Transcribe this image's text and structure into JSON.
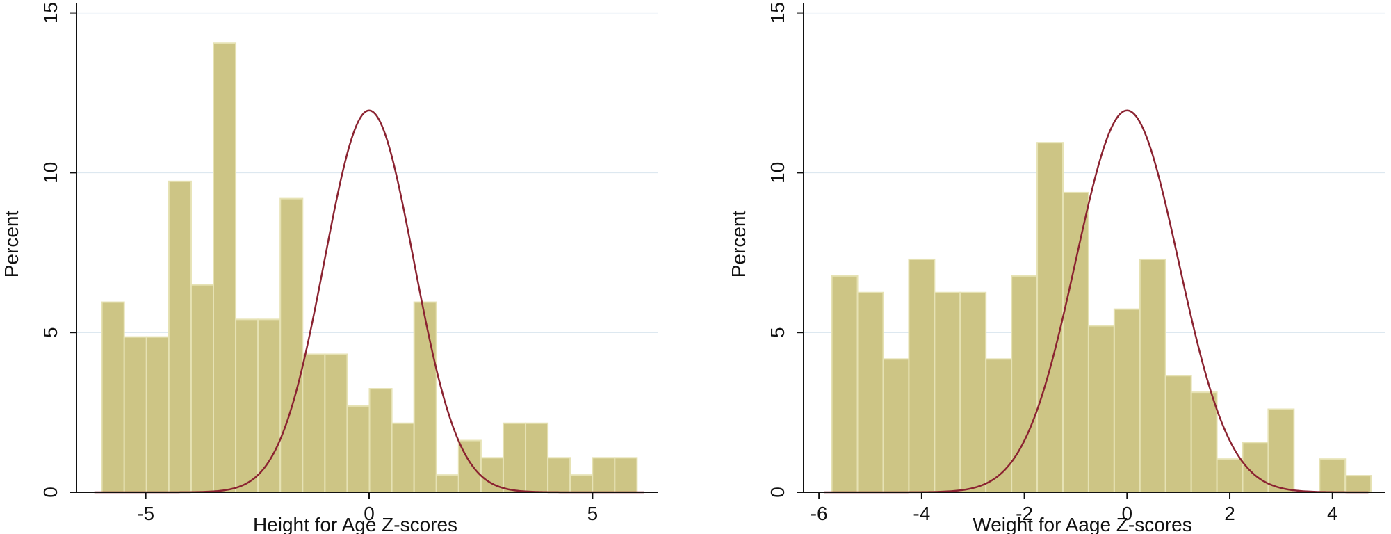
{
  "chart_data": [
    {
      "type": "bar",
      "xlabel": "Height for Age Z-scores",
      "ylabel": "Percent",
      "xlim": [
        -6.55,
        6.55
      ],
      "ylim": [
        0,
        15.1
      ],
      "xticks": [
        -5,
        0,
        5
      ],
      "yticks": [
        0,
        5,
        10,
        15
      ],
      "grid": true,
      "bin_start": -5.98,
      "bin_width": 0.499,
      "values": [
        5.95,
        4.86,
        4.86,
        9.73,
        6.49,
        14.05,
        5.41,
        5.41,
        9.19,
        4.32,
        4.32,
        2.7,
        3.24,
        2.16,
        5.95,
        0.54,
        1.62,
        1.08,
        2.16,
        2.16,
        1.08,
        0.54,
        1.08,
        1.08
      ],
      "bar_color": "#cdc585",
      "overlay": {
        "type": "normal-density",
        "mean": 0,
        "sd": 1,
        "peak": 11.95,
        "color": "#8b2331"
      }
    },
    {
      "type": "bar",
      "xlabel": "Weight for Aage Z-scores",
      "ylabel": "Percent",
      "xlim": [
        -6.3,
        5.1
      ],
      "ylim": [
        0,
        15.1
      ],
      "xticks": [
        -6,
        -4,
        -2,
        0,
        2,
        4
      ],
      "yticks": [
        0,
        5,
        10,
        15
      ],
      "grid": true,
      "bin_start": -5.75,
      "bin_width": 0.5,
      "values": [
        6.77,
        6.25,
        4.17,
        7.29,
        6.25,
        6.25,
        4.17,
        6.77,
        10.94,
        9.38,
        5.21,
        5.73,
        7.29,
        3.65,
        3.13,
        1.04,
        1.56,
        2.6,
        0,
        1.04,
        0.52
      ],
      "bar_color": "#cdc585",
      "overlay": {
        "type": "normal-density",
        "mean": 0,
        "sd": 1,
        "peak": 11.95,
        "color": "#8b2331"
      }
    }
  ]
}
